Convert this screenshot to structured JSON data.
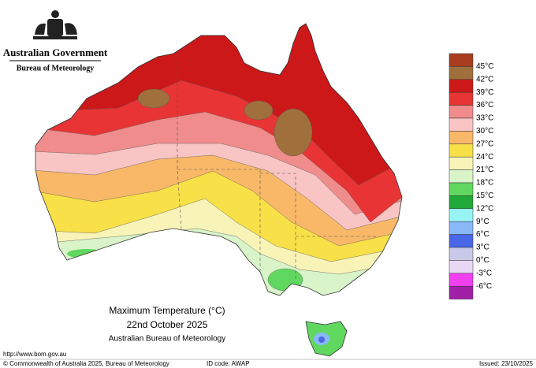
{
  "header": {
    "government": "Australian Government",
    "bureau": "Bureau of Meteorology"
  },
  "legend": {
    "colors": [
      "#a83c1e",
      "#a0703c",
      "#cc1818",
      "#e83434",
      "#f08c8c",
      "#f8c4c4",
      "#f8b868",
      "#f8e048",
      "#f8f4b8",
      "#d8f4c8",
      "#60d860",
      "#20a838",
      "#98f4f4",
      "#88b8f8",
      "#4868e8",
      "#c8c8e8",
      "#e8d8f4",
      "#f040f0",
      "#a020a8"
    ],
    "labels": [
      "45°C",
      "42°C",
      "39°C",
      "36°C",
      "33°C",
      "30°C",
      "27°C",
      "24°C",
      "21°C",
      "18°C",
      "15°C",
      "12°C",
      "9°C",
      "6°C",
      "3°C",
      "0°C",
      "-3°C",
      "-6°C"
    ]
  },
  "caption": {
    "title": "Maximum Temperature (°C)",
    "date": "22nd October 2025",
    "source": "Australian Bureau of Meteorology"
  },
  "footer": {
    "url": "http://www.bom.gov.au",
    "copyright": "© Commonwealth of Australia 2025, Bureau of Meteorology",
    "id_code": "ID code: AWAP",
    "issued": "Issued: 23/10/2025"
  }
}
